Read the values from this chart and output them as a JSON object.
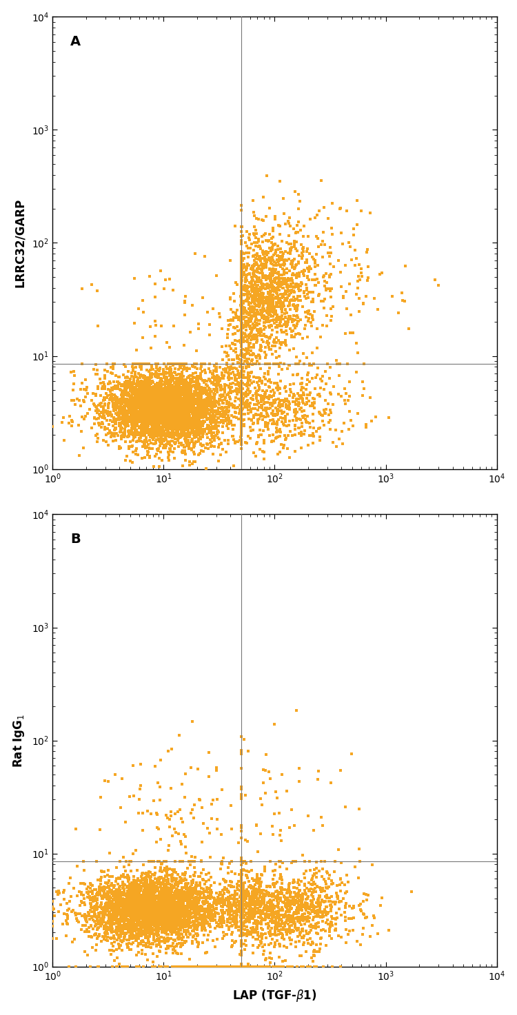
{
  "panel_A": {
    "label": "A",
    "ylabel": "LRRC32/GARP",
    "gate_x": 50,
    "gate_y": 8.5,
    "dot_color": "#F5A623"
  },
  "panel_B": {
    "label": "B",
    "ylabel": "Rat IgG$_1$",
    "gate_x": 50,
    "gate_y": 8.5,
    "dot_color": "#F5A623"
  },
  "xlabel": "LAP (TGF-β1)",
  "xlim": [
    1,
    10000
  ],
  "ylim": [
    1,
    10000
  ],
  "background_color": "#ffffff",
  "dot_size": 9,
  "dot_alpha": 1.0,
  "gate_color": "#777777",
  "gate_lw": 0.8
}
